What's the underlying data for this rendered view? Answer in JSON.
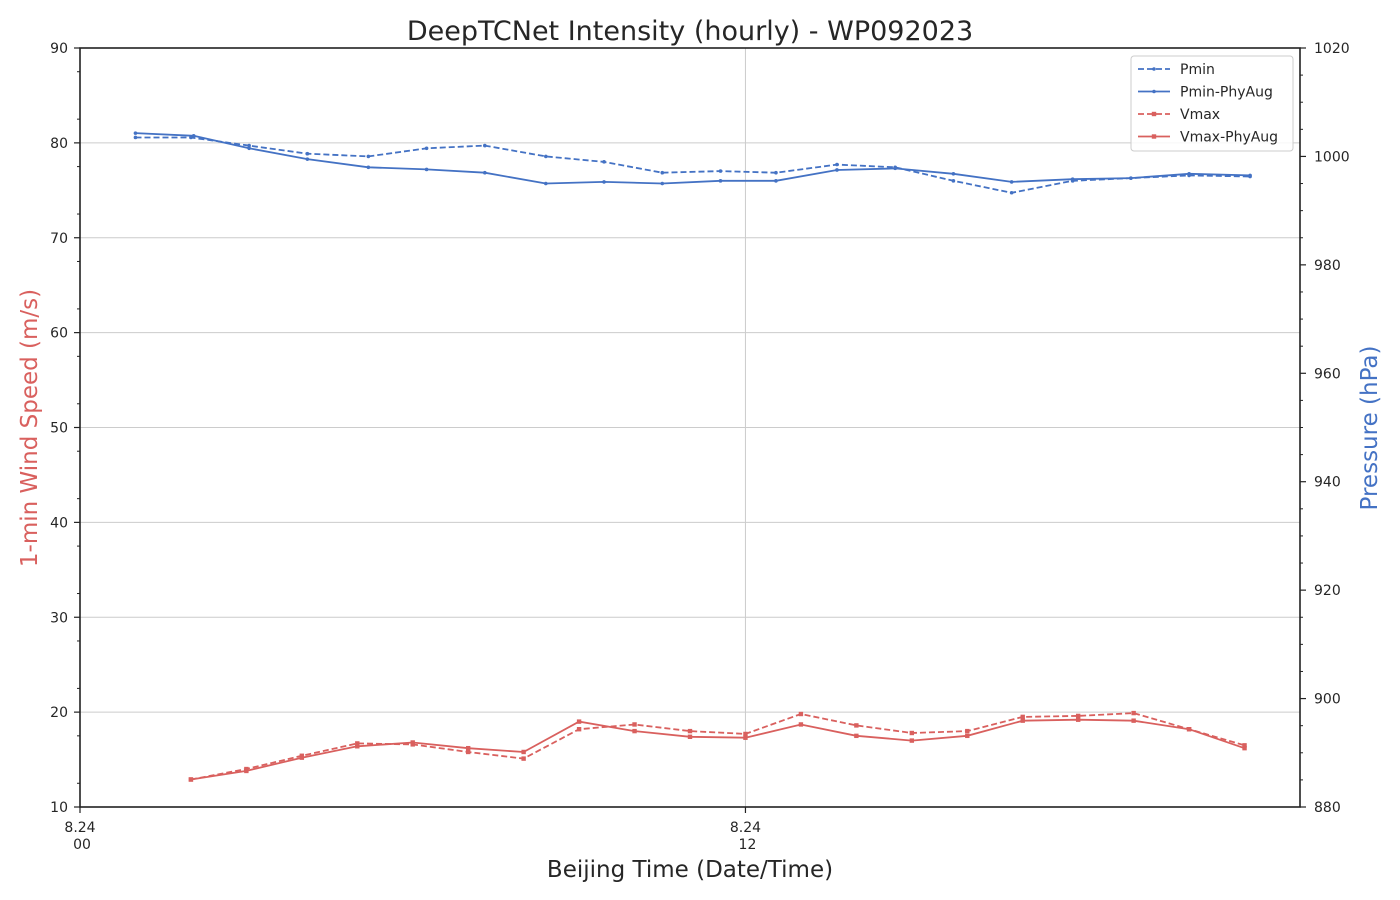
{
  "chart_data": {
    "type": "line",
    "title": "DeepTCNet Intensity (hourly) - WP092023",
    "xlabel": "Beijing Time (Date/Time)",
    "ylabel_left": "1-min Wind Speed (m/s)",
    "ylabel_right": "Pressure (hPa)",
    "x_unit": "hour",
    "xlim": [
      0,
      22
    ],
    "x_ticks": [
      {
        "x": 0,
        "line1": "8.24",
        "line2": "00"
      },
      {
        "x": 12,
        "line1": "8.24",
        "line2": "12"
      }
    ],
    "ylim_left": [
      10,
      90
    ],
    "yticks_left": [
      10,
      20,
      30,
      40,
      50,
      60,
      70,
      80,
      90
    ],
    "ylim_right": [
      880,
      1020
    ],
    "yticks_right": [
      880,
      900,
      920,
      940,
      960,
      980,
      1000,
      1020
    ],
    "grid": true,
    "legend_position": "upper-right",
    "colors": {
      "pressure": "#4472C4",
      "wind": "#D9605E",
      "grid": "#cccccc",
      "axis": "#222222"
    },
    "series": [
      {
        "name": "Pmin",
        "axis": "right",
        "style": "dashed",
        "color": "#4472C4",
        "x": [
          1.0,
          2.0,
          3.05,
          4.1,
          5.2,
          6.25,
          7.3,
          8.4,
          9.45,
          10.5,
          11.55,
          12.55,
          13.65,
          14.7,
          15.75,
          16.8,
          17.9,
          18.95,
          20.0,
          21.1
        ],
        "y": [
          1003.5,
          1003.5,
          1002.0,
          1000.5,
          1000.0,
          1001.5,
          1002.0,
          1000.0,
          999.0,
          997.0,
          997.3,
          997.0,
          998.5,
          998.0,
          995.5,
          993.3,
          995.5,
          996.0,
          996.5,
          996.3
        ]
      },
      {
        "name": "Pmin-PhyAug",
        "axis": "right",
        "style": "solid",
        "color": "#4472C4",
        "x": [
          1.0,
          2.05,
          3.05,
          4.1,
          5.2,
          6.25,
          7.3,
          8.4,
          9.45,
          10.5,
          11.55,
          12.55,
          13.65,
          14.7,
          15.75,
          16.8,
          17.9,
          18.95,
          20.0,
          21.1
        ],
        "y": [
          1004.3,
          1003.8,
          1001.5,
          999.5,
          998.0,
          997.6,
          997.0,
          995.0,
          995.3,
          995.0,
          995.5,
          995.5,
          997.5,
          997.8,
          996.8,
          995.3,
          995.8,
          996.0,
          996.8,
          996.5
        ]
      },
      {
        "name": "Vmax",
        "axis": "left",
        "style": "dashed",
        "color": "#D9605E",
        "x": [
          2.0,
          3.0,
          4.0,
          5.0,
          6.0,
          7.0,
          8.0,
          9.0,
          10.0,
          11.0,
          12.0,
          13.0,
          14.0,
          15.0,
          16.0,
          17.0,
          18.0,
          19.0,
          20.0,
          21.0
        ],
        "y": [
          12.9,
          14.0,
          15.4,
          16.7,
          16.6,
          15.8,
          15.1,
          18.2,
          18.7,
          18.0,
          17.7,
          19.8,
          18.6,
          17.8,
          18.0,
          19.5,
          19.6,
          19.9,
          18.2,
          16.5
        ]
      },
      {
        "name": "Vmax-PhyAug",
        "axis": "left",
        "style": "solid",
        "color": "#D9605E",
        "x": [
          2.0,
          3.0,
          4.0,
          5.0,
          6.0,
          7.0,
          8.0,
          9.0,
          10.0,
          11.0,
          12.0,
          13.0,
          14.0,
          15.0,
          16.0,
          17.0,
          18.0,
          19.0,
          20.0,
          21.0
        ],
        "y": [
          12.9,
          13.8,
          15.2,
          16.4,
          16.8,
          16.2,
          15.8,
          19.0,
          18.0,
          17.4,
          17.3,
          18.7,
          17.5,
          17.0,
          17.5,
          19.1,
          19.2,
          19.1,
          18.2,
          16.2
        ]
      }
    ]
  }
}
